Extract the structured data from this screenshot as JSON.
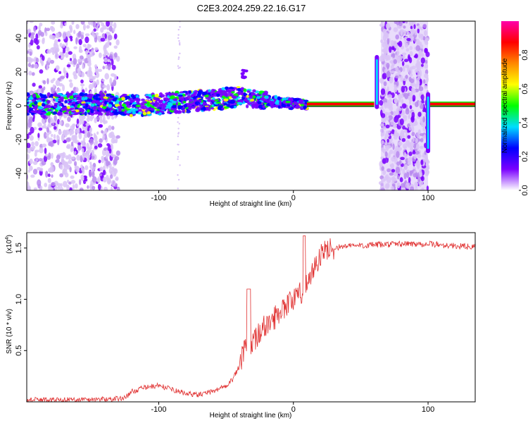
{
  "title": "C2E3.2024.259.22.16.G17",
  "colors": {
    "snr_line": "#e03030",
    "ridge_core": "#ff2222",
    "scatter": "#8a2be2",
    "axis": "#000000"
  },
  "chart_data": [
    {
      "type": "heatmap",
      "xlabel": "Height of straight line (km)",
      "ylabel": "Frequency (Hz)",
      "xlim": [
        -198,
        135
      ],
      "ylim": [
        -50,
        50
      ],
      "xticks": [
        -100,
        0,
        100
      ],
      "yticks": [
        -40,
        -20,
        0,
        20,
        40
      ],
      "noise_bands": [
        [
          -198,
          -130
        ],
        [
          65,
          100
        ]
      ],
      "ridge": {
        "x": [
          -130,
          -115,
          -100,
          -85,
          -70,
          -55,
          -45,
          -38,
          -30,
          -20,
          -10,
          0,
          10,
          60
        ],
        "y": [
          0,
          0,
          1,
          2,
          3,
          4,
          5,
          5,
          4,
          3,
          2,
          1,
          1,
          1
        ]
      },
      "spikes": [
        {
          "x": 62,
          "ylim": [
            -2,
            30
          ]
        },
        {
          "x": 100,
          "ylim": [
            -28,
            8
          ]
        }
      ],
      "stable_segments": [
        [
          10,
          60
        ],
        [
          100,
          135
        ]
      ],
      "colorbar": {
        "label": "Normalized spectral amplitude",
        "range": [
          0.0,
          1.0
        ],
        "ticks": [
          "0.0",
          "0.2",
          "0.4",
          "0.6",
          "0.8"
        ],
        "colors": [
          "#ffffff",
          "#7a00ff",
          "#0000ff",
          "#00ddff",
          "#00ff00",
          "#ffff00",
          "#ff8800",
          "#ff0000",
          "#ff00aa"
        ]
      }
    },
    {
      "type": "line",
      "xlabel": "Height of straight line (km)",
      "ylabel": "SNR (10 * v/v)",
      "multiplier": "(x10",
      "multiplier_exp": "4",
      "multiplier_close": ")",
      "xlim": [
        -198,
        135
      ],
      "ylim": [
        0.0,
        1.65
      ],
      "xticks": [
        -100,
        0,
        100
      ],
      "yticks": [
        "0.5",
        "1.0",
        "1.5"
      ],
      "series": [
        {
          "x": [
            -198,
            -160,
            -130,
            -125,
            -120,
            -110,
            -100,
            -90,
            -80,
            -70,
            -60,
            -50,
            -45,
            -40,
            -35,
            -32,
            -30,
            -25,
            -20,
            -15,
            -10,
            -5,
            0,
            5,
            10,
            15,
            20,
            25,
            30,
            40,
            60,
            80,
            100,
            120,
            135
          ],
          "y": [
            0.02,
            0.02,
            0.03,
            0.04,
            0.1,
            0.14,
            0.16,
            0.12,
            0.08,
            0.07,
            0.1,
            0.16,
            0.22,
            0.35,
            0.55,
            0.4,
            0.6,
            0.68,
            0.75,
            0.8,
            0.9,
            0.95,
            1.0,
            1.05,
            1.15,
            1.3,
            1.42,
            1.48,
            1.5,
            1.52,
            1.53,
            1.54,
            1.54,
            1.52,
            1.51
          ]
        }
      ]
    }
  ]
}
